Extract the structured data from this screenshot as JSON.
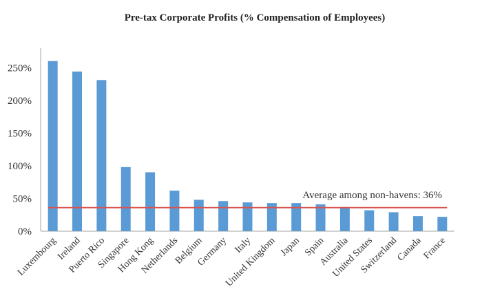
{
  "chart_data": {
    "type": "bar",
    "title": "Pre-tax Corporate Profits (% Compensation of Employees)",
    "xlabel": "",
    "ylabel": "",
    "categories": [
      "Luxembourg",
      "Ireland",
      "Puerto Rico",
      "Singapore",
      "Hong Kong",
      "Netherlands",
      "Belgium",
      "Germany",
      "Italy",
      "United Kingdom",
      "Japan",
      "Spain",
      "Australia",
      "United States",
      "Switzerland",
      "Canada",
      "France"
    ],
    "values": [
      260,
      244,
      231,
      98,
      90,
      62,
      48,
      46,
      44,
      43,
      43,
      41,
      37,
      32,
      29,
      23,
      22
    ],
    "ylim": [
      0,
      280
    ],
    "yticks": [
      0,
      50,
      100,
      150,
      200,
      250
    ],
    "ytick_labels": [
      "0%",
      "50%",
      "100%",
      "150%",
      "200%",
      "250%"
    ],
    "grid": false,
    "reference_line": {
      "value": 36,
      "label": "Average among non-havens: 36%",
      "color": "#d9534f"
    },
    "colors": {
      "bar": "#5b9bd5",
      "axis": "#a6a6a6"
    }
  }
}
